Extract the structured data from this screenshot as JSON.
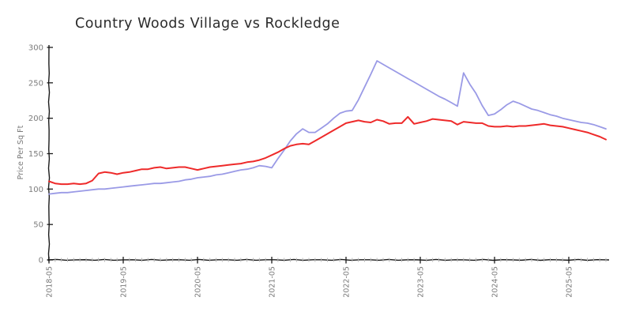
{
  "title": "Country Woods Village vs Rockledge",
  "axis": {
    "y_label": "Price Per Sq Ft",
    "y_tick_labels": [
      "0",
      "50",
      "100",
      "150",
      "200",
      "250",
      "300"
    ],
    "x_tick_labels": [
      "2018-05",
      "2019-05",
      "2020-05",
      "2021-05",
      "2022-05",
      "2023-05",
      "2024-05",
      "2025-05"
    ]
  },
  "colors": {
    "red_series": "#ee2a2a",
    "blue_series": "#9a9ae6",
    "axis": "#1a1a1a",
    "tick_label": "#7b7b7b",
    "minor_tick": "#b9b9b9",
    "title_text": "#2b2b2b"
  },
  "chart_data": {
    "type": "line",
    "title": "Country Woods Village vs Rockledge",
    "xlabel": "",
    "ylabel": "Price Per Sq Ft",
    "ylim": [
      0,
      300
    ],
    "y_ticks": [
      0,
      50,
      100,
      150,
      200,
      250,
      300
    ],
    "x_major_tick_labels": [
      "2018-05",
      "2019-05",
      "2020-05",
      "2021-05",
      "2022-05",
      "2023-05",
      "2024-05",
      "2025-05"
    ],
    "x_major_tick_month_index": [
      0,
      12,
      24,
      36,
      48,
      60,
      72,
      84
    ],
    "grid": false,
    "legend": "none",
    "style": "xkcd-sketch",
    "x": [
      "2018-05",
      "2018-06",
      "2018-07",
      "2018-08",
      "2018-09",
      "2018-10",
      "2018-11",
      "2018-12",
      "2019-01",
      "2019-02",
      "2019-03",
      "2019-04",
      "2019-05",
      "2019-06",
      "2019-07",
      "2019-08",
      "2019-09",
      "2019-10",
      "2019-11",
      "2019-12",
      "2020-01",
      "2020-02",
      "2020-03",
      "2020-04",
      "2020-05",
      "2020-06",
      "2020-07",
      "2020-08",
      "2020-09",
      "2020-10",
      "2020-11",
      "2020-12",
      "2021-01",
      "2021-02",
      "2021-03",
      "2021-04",
      "2021-05",
      "2021-06",
      "2021-07",
      "2021-08",
      "2021-09",
      "2021-10",
      "2021-11",
      "2021-12",
      "2022-01",
      "2022-02",
      "2022-03",
      "2022-04",
      "2022-05",
      "2022-06",
      "2022-07",
      "2022-08",
      "2022-09",
      "2022-10",
      "2022-11",
      "2022-12",
      "2023-01",
      "2023-02",
      "2023-03",
      "2023-04",
      "2023-05",
      "2023-06",
      "2023-07",
      "2023-08",
      "2023-09",
      "2023-10",
      "2023-11",
      "2023-12",
      "2024-01",
      "2024-02",
      "2024-03",
      "2024-04",
      "2024-05",
      "2024-06",
      "2024-07",
      "2024-08",
      "2024-09",
      "2024-10",
      "2024-11",
      "2024-12",
      "2025-01",
      "2025-02",
      "2025-03",
      "2025-04",
      "2025-05",
      "2025-06",
      "2025-07",
      "2025-08",
      "2025-09",
      "2025-10",
      "2025-11"
    ],
    "series": [
      {
        "name": "Country Woods Village",
        "color": "#ee2a2a",
        "values": [
          111,
          108,
          107,
          107,
          108,
          107,
          108,
          112,
          122,
          124,
          123,
          121,
          123,
          124,
          126,
          128,
          128,
          130,
          131,
          129,
          130,
          131,
          131,
          129,
          127,
          129,
          131,
          132,
          133,
          134,
          135,
          136,
          138,
          139,
          141,
          144,
          148,
          152,
          157,
          161,
          163,
          164,
          163,
          168,
          173,
          178,
          183,
          188,
          193,
          195,
          197,
          195,
          194,
          198,
          196,
          192,
          193,
          193,
          202,
          192,
          194,
          196,
          199,
          198,
          197,
          196,
          191,
          195,
          194,
          193,
          193,
          189,
          188,
          188,
          189,
          188,
          189,
          189,
          190,
          191,
          192,
          190,
          189,
          188,
          186,
          184,
          182,
          180,
          177,
          174,
          170
        ]
      },
      {
        "name": "Rockledge",
        "color": "#9a9ae6",
        "values": [
          93,
          94,
          95,
          95,
          96,
          97,
          98,
          99,
          100,
          100,
          101,
          102,
          103,
          104,
          105,
          106,
          107,
          108,
          108,
          109,
          110,
          111,
          113,
          114,
          116,
          117,
          118,
          120,
          121,
          123,
          125,
          127,
          128,
          130,
          133,
          132,
          130,
          143,
          155,
          168,
          178,
          185,
          180,
          180,
          186,
          192,
          200,
          207,
          210,
          211,
          226,
          244,
          262,
          281,
          276,
          271,
          266,
          261,
          256,
          251,
          246,
          241,
          236,
          231,
          227,
          222,
          217,
          264,
          248,
          235,
          218,
          204,
          206,
          212,
          219,
          224,
          221,
          217,
          213,
          211,
          208,
          205,
          203,
          200,
          198,
          196,
          194,
          193,
          191,
          188,
          185
        ]
      }
    ]
  }
}
